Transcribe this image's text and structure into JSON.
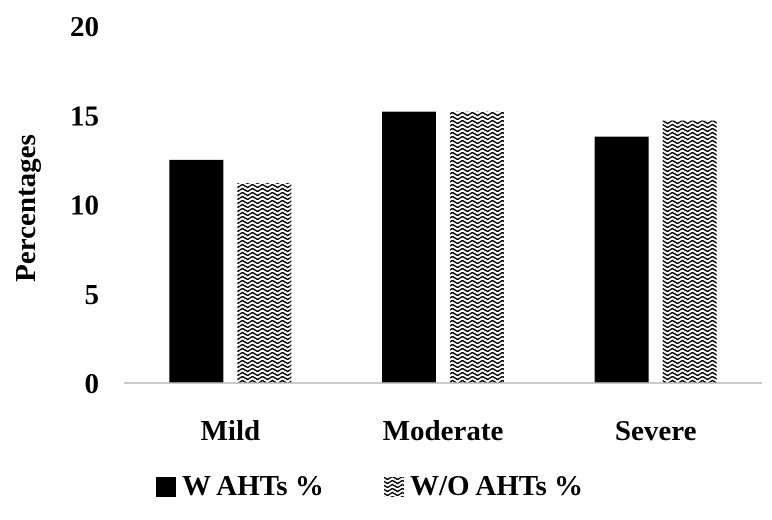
{
  "chart_data": {
    "type": "bar",
    "title": "",
    "xlabel": "",
    "ylabel": "Percentages",
    "categories": [
      "Mild",
      "Moderate",
      "Severe"
    ],
    "ylim": [
      0,
      20
    ],
    "yticks": [
      0,
      5,
      10,
      15,
      20
    ],
    "grid": false,
    "legend_position": "bottom",
    "series": [
      {
        "name": "W AHTs %",
        "values": [
          12.5,
          15.2,
          13.8
        ],
        "color": "#000000",
        "pattern": "solid"
      },
      {
        "name": "W/O AHTs %",
        "values": [
          11.2,
          15.2,
          14.7
        ],
        "color": "#000000",
        "pattern": "zigzag"
      }
    ]
  }
}
